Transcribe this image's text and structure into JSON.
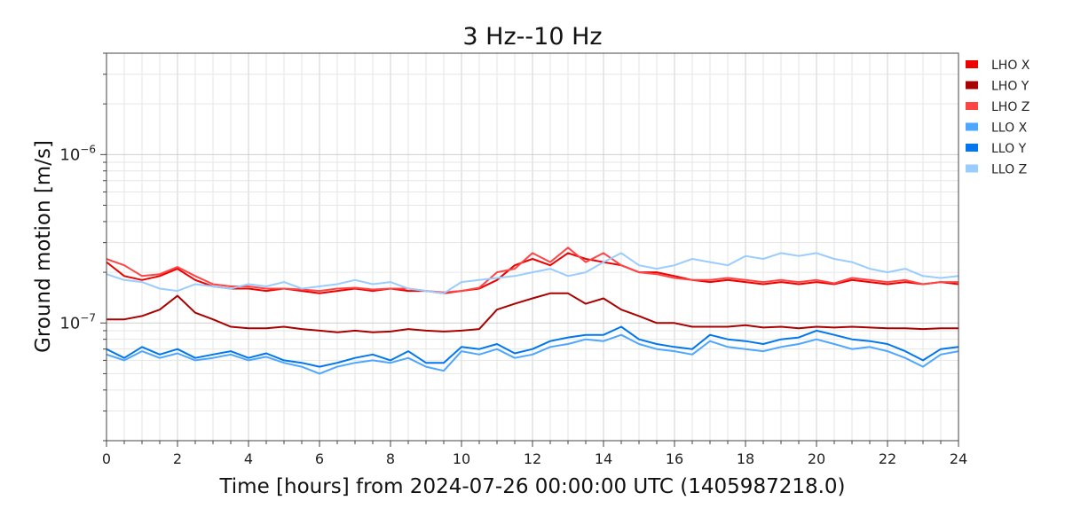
{
  "chart_data": {
    "type": "line",
    "title": "3 Hz--10 Hz",
    "xlabel": "Time [hours] from 2024-07-26 00:00:00 UTC (1405987218.0)",
    "ylabel": "Ground motion [m/s]",
    "xlim": [
      0,
      24
    ],
    "ylim": [
      2e-08,
      4e-06
    ],
    "yscale": "log",
    "grid": true,
    "legend_position": "top-right",
    "x_ticks": [
      0,
      2,
      4,
      6,
      8,
      10,
      12,
      14,
      16,
      18,
      20,
      22,
      24
    ],
    "x_tick_labels": [
      "0",
      "2",
      "4",
      "6",
      "8",
      "10",
      "12",
      "14",
      "16",
      "18",
      "20",
      "22",
      "24"
    ],
    "y_tick_labels": [
      {
        "value": 1e-07,
        "base": "10",
        "exp": "−7"
      },
      {
        "value": 1e-06,
        "base": "10",
        "exp": "−6"
      }
    ],
    "series": [
      {
        "name": "LHO X",
        "color": "#ee0000",
        "x": [
          0,
          0.5,
          1,
          1.5,
          2,
          2.5,
          3,
          3.5,
          4,
          4.5,
          5,
          5.5,
          6,
          6.5,
          7,
          7.5,
          8,
          8.5,
          9,
          9.5,
          10,
          10.5,
          11,
          11.5,
          12,
          12.5,
          13,
          13.5,
          14,
          14.5,
          15,
          15.5,
          16,
          16.5,
          17,
          17.5,
          18,
          18.5,
          19,
          19.5,
          20,
          20.5,
          21,
          21.5,
          22,
          22.5,
          23,
          23.5,
          24
        ],
        "y": [
          2.3e-07,
          1.9e-07,
          1.8e-07,
          1.9e-07,
          2.1e-07,
          1.8e-07,
          1.65e-07,
          1.6e-07,
          1.6e-07,
          1.55e-07,
          1.6e-07,
          1.55e-07,
          1.5e-07,
          1.55e-07,
          1.6e-07,
          1.55e-07,
          1.6e-07,
          1.55e-07,
          1.55e-07,
          1.5e-07,
          1.55e-07,
          1.6e-07,
          1.8e-07,
          2.2e-07,
          2.4e-07,
          2.2e-07,
          2.6e-07,
          2.4e-07,
          2.3e-07,
          2.2e-07,
          2e-07,
          2e-07,
          1.9e-07,
          1.8e-07,
          1.75e-07,
          1.8e-07,
          1.75e-07,
          1.7e-07,
          1.75e-07,
          1.7e-07,
          1.75e-07,
          1.7e-07,
          1.8e-07,
          1.75e-07,
          1.7e-07,
          1.75e-07,
          1.7e-07,
          1.75e-07,
          1.7e-07
        ]
      },
      {
        "name": "LHO Y",
        "color": "#aa0000",
        "x": [
          0,
          0.5,
          1,
          1.5,
          2,
          2.5,
          3,
          3.5,
          4,
          4.5,
          5,
          5.5,
          6,
          6.5,
          7,
          7.5,
          8,
          8.5,
          9,
          9.5,
          10,
          10.5,
          11,
          11.5,
          12,
          12.5,
          13,
          13.5,
          14,
          14.5,
          15,
          15.5,
          16,
          16.5,
          17,
          17.5,
          18,
          18.5,
          19,
          19.5,
          20,
          20.5,
          21,
          21.5,
          22,
          22.5,
          23,
          23.5,
          24
        ],
        "y": [
          1.05e-07,
          1.05e-07,
          1.1e-07,
          1.2e-07,
          1.45e-07,
          1.15e-07,
          1.05e-07,
          9.5e-08,
          9.3e-08,
          9.3e-08,
          9.5e-08,
          9.2e-08,
          9e-08,
          8.8e-08,
          9e-08,
          8.8e-08,
          8.9e-08,
          9.2e-08,
          9e-08,
          8.9e-08,
          9e-08,
          9.2e-08,
          1.2e-07,
          1.3e-07,
          1.4e-07,
          1.5e-07,
          1.5e-07,
          1.3e-07,
          1.4e-07,
          1.2e-07,
          1.1e-07,
          1e-07,
          1e-07,
          9.5e-08,
          9.5e-08,
          9.5e-08,
          9.7e-08,
          9.4e-08,
          9.5e-08,
          9.3e-08,
          9.5e-08,
          9.4e-08,
          9.5e-08,
          9.4e-08,
          9.3e-08,
          9.3e-08,
          9.2e-08,
          9.3e-08,
          9.3e-08
        ]
      },
      {
        "name": "LHO Z",
        "color": "#ff4444",
        "x": [
          0,
          0.5,
          1,
          1.5,
          2,
          2.5,
          3,
          3.5,
          4,
          4.5,
          5,
          5.5,
          6,
          6.5,
          7,
          7.5,
          8,
          8.5,
          9,
          9.5,
          10,
          10.5,
          11,
          11.5,
          12,
          12.5,
          13,
          13.5,
          14,
          14.5,
          15,
          15.5,
          16,
          16.5,
          17,
          17.5,
          18,
          18.5,
          19,
          19.5,
          20,
          20.5,
          21,
          21.5,
          22,
          22.5,
          23,
          23.5,
          24
        ],
        "y": [
          2.4e-07,
          2.2e-07,
          1.9e-07,
          1.95e-07,
          2.15e-07,
          1.9e-07,
          1.7e-07,
          1.65e-07,
          1.65e-07,
          1.6e-07,
          1.6e-07,
          1.58e-07,
          1.55e-07,
          1.6e-07,
          1.62e-07,
          1.58e-07,
          1.6e-07,
          1.6e-07,
          1.55e-07,
          1.52e-07,
          1.55e-07,
          1.62e-07,
          2e-07,
          2.1e-07,
          2.6e-07,
          2.3e-07,
          2.8e-07,
          2.3e-07,
          2.6e-07,
          2.2e-07,
          2e-07,
          1.95e-07,
          1.85e-07,
          1.8e-07,
          1.8e-07,
          1.85e-07,
          1.8e-07,
          1.75e-07,
          1.8e-07,
          1.75e-07,
          1.8e-07,
          1.72e-07,
          1.85e-07,
          1.8e-07,
          1.75e-07,
          1.8e-07,
          1.7e-07,
          1.75e-07,
          1.75e-07
        ]
      },
      {
        "name": "LLO X",
        "color": "#4da6ff",
        "x": [
          0,
          0.5,
          1,
          1.5,
          2,
          2.5,
          3,
          3.5,
          4,
          4.5,
          5,
          5.5,
          6,
          6.5,
          7,
          7.5,
          8,
          8.5,
          9,
          9.5,
          10,
          10.5,
          11,
          11.5,
          12,
          12.5,
          13,
          13.5,
          14,
          14.5,
          15,
          15.5,
          16,
          16.5,
          17,
          17.5,
          18,
          18.5,
          19,
          19.5,
          20,
          20.5,
          21,
          21.5,
          22,
          22.5,
          23,
          23.5,
          24
        ],
        "y": [
          6.5e-08,
          6e-08,
          6.8e-08,
          6.2e-08,
          6.6e-08,
          6e-08,
          6.2e-08,
          6.5e-08,
          6e-08,
          6.3e-08,
          5.8e-08,
          5.5e-08,
          5e-08,
          5.5e-08,
          5.8e-08,
          6e-08,
          5.8e-08,
          6.2e-08,
          5.5e-08,
          5.2e-08,
          6.8e-08,
          6.5e-08,
          7e-08,
          6.2e-08,
          6.5e-08,
          7.2e-08,
          7.5e-08,
          8e-08,
          7.8e-08,
          8.5e-08,
          7.5e-08,
          7e-08,
          6.8e-08,
          6.5e-08,
          7.8e-08,
          7.2e-08,
          7e-08,
          6.8e-08,
          7.2e-08,
          7.5e-08,
          8e-08,
          7.5e-08,
          7e-08,
          7.2e-08,
          6.8e-08,
          6.2e-08,
          5.5e-08,
          6.5e-08,
          6.8e-08
        ]
      },
      {
        "name": "LLO Y",
        "color": "#0077ee",
        "x": [
          0,
          0.5,
          1,
          1.5,
          2,
          2.5,
          3,
          3.5,
          4,
          4.5,
          5,
          5.5,
          6,
          6.5,
          7,
          7.5,
          8,
          8.5,
          9,
          9.5,
          10,
          10.5,
          11,
          11.5,
          12,
          12.5,
          13,
          13.5,
          14,
          14.5,
          15,
          15.5,
          16,
          16.5,
          17,
          17.5,
          18,
          18.5,
          19,
          19.5,
          20,
          20.5,
          21,
          21.5,
          22,
          22.5,
          23,
          23.5,
          24
        ],
        "y": [
          7e-08,
          6.2e-08,
          7.2e-08,
          6.5e-08,
          7e-08,
          6.2e-08,
          6.5e-08,
          6.8e-08,
          6.2e-08,
          6.6e-08,
          6e-08,
          5.8e-08,
          5.5e-08,
          5.8e-08,
          6.2e-08,
          6.5e-08,
          6e-08,
          6.8e-08,
          5.8e-08,
          5.8e-08,
          7.2e-08,
          7e-08,
          7.5e-08,
          6.6e-08,
          7e-08,
          7.8e-08,
          8.2e-08,
          8.5e-08,
          8.5e-08,
          9.5e-08,
          8e-08,
          7.5e-08,
          7.2e-08,
          7e-08,
          8.5e-08,
          8e-08,
          7.8e-08,
          7.5e-08,
          8e-08,
          8.2e-08,
          9e-08,
          8.5e-08,
          8e-08,
          7.8e-08,
          7.5e-08,
          6.8e-08,
          6e-08,
          7e-08,
          7.2e-08
        ]
      },
      {
        "name": "LLO Z",
        "color": "#99ccff",
        "x": [
          0,
          0.5,
          1,
          1.5,
          2,
          2.5,
          3,
          3.5,
          4,
          4.5,
          5,
          5.5,
          6,
          6.5,
          7,
          7.5,
          8,
          8.5,
          9,
          9.5,
          10,
          10.5,
          11,
          11.5,
          12,
          12.5,
          13,
          13.5,
          14,
          14.5,
          15,
          15.5,
          16,
          16.5,
          17,
          17.5,
          18,
          18.5,
          19,
          19.5,
          20,
          20.5,
          21,
          21.5,
          22,
          22.5,
          23,
          23.5,
          24
        ],
        "y": [
          1.95e-07,
          1.8e-07,
          1.75e-07,
          1.6e-07,
          1.55e-07,
          1.7e-07,
          1.65e-07,
          1.6e-07,
          1.7e-07,
          1.65e-07,
          1.75e-07,
          1.6e-07,
          1.65e-07,
          1.7e-07,
          1.8e-07,
          1.7e-07,
          1.75e-07,
          1.6e-07,
          1.55e-07,
          1.5e-07,
          1.75e-07,
          1.8e-07,
          1.85e-07,
          1.9e-07,
          2e-07,
          2.1e-07,
          1.9e-07,
          2e-07,
          2.3e-07,
          2.6e-07,
          2.2e-07,
          2.1e-07,
          2.2e-07,
          2.4e-07,
          2.3e-07,
          2.2e-07,
          2.5e-07,
          2.4e-07,
          2.6e-07,
          2.5e-07,
          2.6e-07,
          2.4e-07,
          2.3e-07,
          2.1e-07,
          2e-07,
          2.1e-07,
          1.9e-07,
          1.85e-07,
          1.9e-07
        ]
      }
    ]
  }
}
